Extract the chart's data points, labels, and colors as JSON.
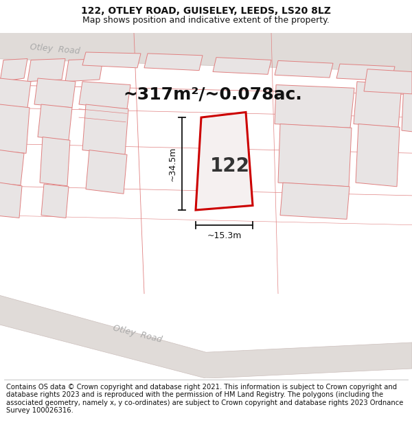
{
  "title_line1": "122, OTLEY ROAD, GUISELEY, LEEDS, LS20 8LZ",
  "title_line2": "Map shows position and indicative extent of the property.",
  "footer_text": "Contains OS data © Crown copyright and database right 2021. This information is subject to Crown copyright and database rights 2023 and is reproduced with the permission of HM Land Registry. The polygons (including the associated geometry, namely x, y co-ordinates) are subject to Crown copyright and database rights 2023 Ordnance Survey 100026316.",
  "area_text": "~317m²/~0.078ac.",
  "property_label": "122",
  "dim_width": "~15.3m",
  "dim_height": "~34.5m",
  "bg_color": "#ffffff",
  "map_bg": "#f8f6f6",
  "building_fill": "#e8e4e4",
  "building_edge": "#e08080",
  "road_fill": "#e0dbd8",
  "road_label": "#aaaaaa",
  "plot_edge": "#cc0000",
  "plot_fill": "#f5f0f0",
  "dim_color": "#111111",
  "title_fontsize": 10,
  "subtitle_fontsize": 9,
  "footer_fontsize": 7.2,
  "area_fontsize": 18,
  "label_fontsize": 20,
  "dim_fontsize": 9
}
